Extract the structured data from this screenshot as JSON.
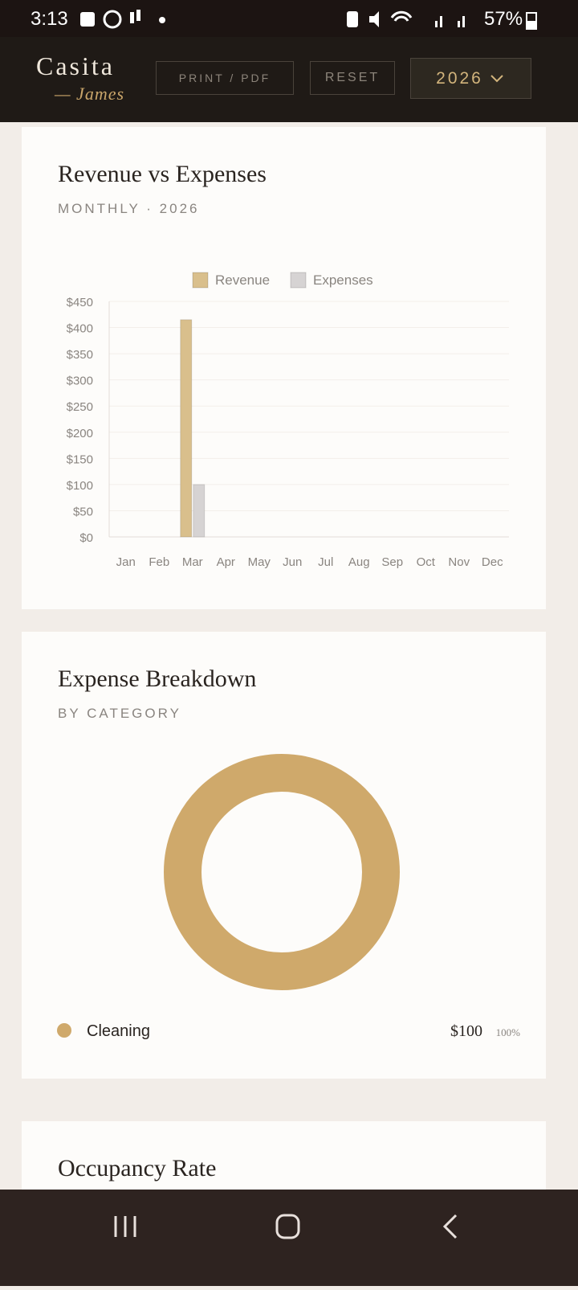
{
  "status_bar": {
    "time": "3:13",
    "battery": "57%"
  },
  "header": {
    "brand": "Casita",
    "owner": "— James",
    "print_button": "PRINT / PDF",
    "reset_button": "RESET",
    "year_select": "2026"
  },
  "cards": [
    {
      "title": "Revenue vs Expenses",
      "subtitle": "MONTHLY · 2026"
    },
    {
      "title": "Expense Breakdown",
      "subtitle": "BY CATEGORY"
    },
    {
      "title": "Occupancy Rate"
    }
  ],
  "chart_data": [
    {
      "type": "bar",
      "categories": [
        "Jan",
        "Feb",
        "Mar",
        "Apr",
        "May",
        "Jun",
        "Jul",
        "Aug",
        "Sep",
        "Oct",
        "Nov",
        "Dec"
      ],
      "series": [
        {
          "name": "Revenue",
          "color": "#d9bf8c",
          "values": [
            0,
            0,
            415,
            0,
            0,
            0,
            0,
            0,
            0,
            0,
            0,
            0
          ]
        },
        {
          "name": "Expenses",
          "color": "#d6d3d3",
          "values": [
            0,
            0,
            100,
            0,
            0,
            0,
            0,
            0,
            0,
            0,
            0,
            0
          ]
        }
      ],
      "ylim": [
        0,
        450
      ],
      "yticks": [
        {
          "value": 0,
          "label": "$0"
        },
        {
          "value": 50,
          "label": "$50"
        },
        {
          "value": 100,
          "label": "$100"
        },
        {
          "value": 150,
          "label": "$150"
        },
        {
          "value": 200,
          "label": "$200"
        },
        {
          "value": 250,
          "label": "$250"
        },
        {
          "value": 300,
          "label": "$300"
        },
        {
          "value": 350,
          "label": "$350"
        },
        {
          "value": 400,
          "label": "$400"
        },
        {
          "value": 450,
          "label": "$450"
        }
      ],
      "grid": true,
      "legend": "top"
    },
    {
      "type": "pie",
      "categories": [
        "Cleaning"
      ],
      "values": [
        100
      ],
      "value_labels": [
        "$100"
      ],
      "share_labels": [
        "100%"
      ],
      "colors": [
        "#cfa96b"
      ],
      "legend": "bottom"
    }
  ]
}
